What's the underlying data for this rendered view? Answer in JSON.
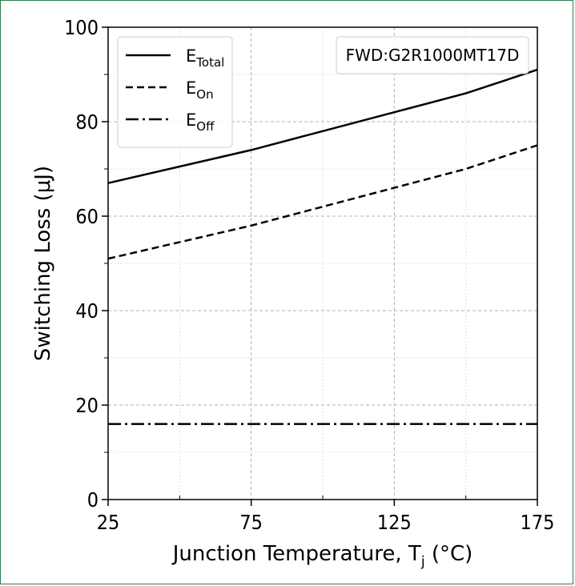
{
  "chart_data": {
    "type": "line",
    "xlabel": "Junction Temperature, T",
    "xlabel_sub": "j",
    "xlabel_unit": " (°C)",
    "ylabel": "Switching Loss (μJ)",
    "xlim": [
      25,
      175
    ],
    "ylim": [
      0,
      100
    ],
    "xticks": [
      25,
      75,
      125,
      175
    ],
    "yticks": [
      0,
      20,
      40,
      60,
      80,
      100
    ],
    "grid": true,
    "legend_position": "top-left",
    "annotation": "FWD:G2R1000MT17D",
    "series": [
      {
        "name": "E",
        "sub": "Total",
        "style": "solid",
        "x": [
          25,
          75,
          125,
          150,
          175
        ],
        "y": [
          67,
          74,
          82,
          86,
          91
        ]
      },
      {
        "name": "E",
        "sub": "On",
        "style": "dashed",
        "x": [
          25,
          75,
          125,
          150,
          175
        ],
        "y": [
          51,
          58,
          66,
          70,
          75
        ]
      },
      {
        "name": "E",
        "sub": "Off",
        "style": "dashdot",
        "x": [
          25,
          75,
          125,
          175
        ],
        "y": [
          16,
          16,
          16,
          16
        ]
      }
    ]
  }
}
